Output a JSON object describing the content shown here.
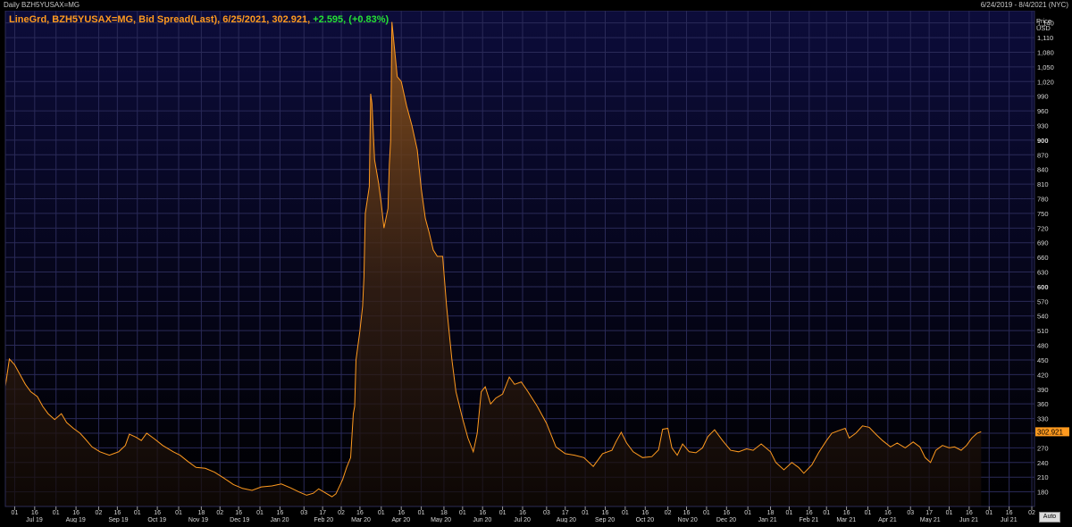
{
  "header": {
    "left_title": "Daily BZH5YUSAX=MG",
    "right_range": "6/24/2019 - 8/4/2021 (NYC)"
  },
  "legend": {
    "prefix": "LineGrd, BZH5YUSAX=MG, Bid Spread(Last), 6/25/2021, 302.921, ",
    "change": "+2.595, (+0.83%)"
  },
  "y_axis": {
    "title_line1": "Price",
    "title_line2": "USD",
    "ticks": [
      1140,
      1110,
      1080,
      1050,
      1020,
      990,
      960,
      930,
      900,
      870,
      840,
      810,
      780,
      750,
      720,
      690,
      660,
      630,
      600,
      570,
      540,
      510,
      480,
      450,
      420,
      390,
      360,
      330,
      300,
      270,
      240,
      210,
      180
    ],
    "bold_ticks": [
      900,
      600,
      300
    ],
    "last_value_label": "302.921"
  },
  "auto_button": "Auto",
  "colors": {
    "line": "#ff9a1f",
    "bg_top": "#0c0c3a",
    "bg_bottom": "#000000",
    "positive": "#25e035"
  },
  "chart_data": {
    "type": "area",
    "ylim": [
      150,
      1165
    ],
    "x_range": [
      "2019-06-24",
      "2021-08-04"
    ],
    "x_ticks": [
      {
        "label": "01",
        "date": "2019-07-01",
        "month": "Jul 19"
      },
      {
        "label": "16",
        "date": "2019-07-16"
      },
      {
        "label": "01",
        "date": "2019-08-01",
        "month": "Aug 19"
      },
      {
        "label": "16",
        "date": "2019-08-16"
      },
      {
        "label": "02",
        "date": "2019-09-02",
        "month": "Sep 19"
      },
      {
        "label": "16",
        "date": "2019-09-16"
      },
      {
        "label": "01",
        "date": "2019-10-01",
        "month": "Oct 19"
      },
      {
        "label": "16",
        "date": "2019-10-16"
      },
      {
        "label": "01",
        "date": "2019-11-01",
        "month": "Nov 19"
      },
      {
        "label": "18",
        "date": "2019-11-18"
      },
      {
        "label": "02",
        "date": "2019-12-02",
        "month": "Dec 19"
      },
      {
        "label": "16",
        "date": "2019-12-16"
      },
      {
        "label": "01",
        "date": "2020-01-01",
        "month": "Jan 20"
      },
      {
        "label": "16",
        "date": "2020-01-16"
      },
      {
        "label": "03",
        "date": "2020-02-03",
        "month": "Feb 20"
      },
      {
        "label": "17",
        "date": "2020-02-17"
      },
      {
        "label": "02",
        "date": "2020-03-02",
        "month": "Mar 20"
      },
      {
        "label": "16",
        "date": "2020-03-16"
      },
      {
        "label": "01",
        "date": "2020-04-01",
        "month": "Apr 20"
      },
      {
        "label": "16",
        "date": "2020-04-16"
      },
      {
        "label": "01",
        "date": "2020-05-01",
        "month": "May 20"
      },
      {
        "label": "18",
        "date": "2020-05-18"
      },
      {
        "label": "01",
        "date": "2020-06-01",
        "month": "Jun 20"
      },
      {
        "label": "16",
        "date": "2020-06-16"
      },
      {
        "label": "01",
        "date": "2020-07-01",
        "month": "Jul 20"
      },
      {
        "label": "16",
        "date": "2020-07-16"
      },
      {
        "label": "03",
        "date": "2020-08-03",
        "month": "Aug 20"
      },
      {
        "label": "17",
        "date": "2020-08-17"
      },
      {
        "label": "01",
        "date": "2020-09-01",
        "month": "Sep 20"
      },
      {
        "label": "16",
        "date": "2020-09-16"
      },
      {
        "label": "01",
        "date": "2020-10-01",
        "month": "Oct 20"
      },
      {
        "label": "16",
        "date": "2020-10-16"
      },
      {
        "label": "02",
        "date": "2020-11-02",
        "month": "Nov 20"
      },
      {
        "label": "16",
        "date": "2020-11-16"
      },
      {
        "label": "01",
        "date": "2020-12-01",
        "month": "Dec 20"
      },
      {
        "label": "16",
        "date": "2020-12-16"
      },
      {
        "label": "01",
        "date": "2021-01-01",
        "month": "Jan 21"
      },
      {
        "label": "18",
        "date": "2021-01-18"
      },
      {
        "label": "01",
        "date": "2021-02-01",
        "month": "Feb 21"
      },
      {
        "label": "16",
        "date": "2021-02-16"
      },
      {
        "label": "01",
        "date": "2021-03-01",
        "month": "Mar 21"
      },
      {
        "label": "16",
        "date": "2021-03-16"
      },
      {
        "label": "01",
        "date": "2021-04-01",
        "month": "Apr 21"
      },
      {
        "label": "16",
        "date": "2021-04-16"
      },
      {
        "label": "03",
        "date": "2021-05-03",
        "month": "May 21"
      },
      {
        "label": "17",
        "date": "2021-05-17"
      },
      {
        "label": "01",
        "date": "2021-06-01",
        "month": "Jun 21"
      },
      {
        "label": "16",
        "date": "2021-06-16"
      },
      {
        "label": "01",
        "date": "2021-07-01",
        "month": "Jul 21"
      },
      {
        "label": "16",
        "date": "2021-07-16"
      },
      {
        "label": "02",
        "date": "2021-08-02"
      }
    ],
    "series": [
      {
        "points": [
          [
            "2019-06-24",
            396
          ],
          [
            "2019-06-27",
            452
          ],
          [
            "2019-07-01",
            440
          ],
          [
            "2019-07-05",
            420
          ],
          [
            "2019-07-09",
            400
          ],
          [
            "2019-07-13",
            385
          ],
          [
            "2019-07-18",
            375
          ],
          [
            "2019-07-22",
            355
          ],
          [
            "2019-07-26",
            340
          ],
          [
            "2019-07-31",
            328
          ],
          [
            "2019-08-05",
            340
          ],
          [
            "2019-08-09",
            322
          ],
          [
            "2019-08-14",
            310
          ],
          [
            "2019-08-19",
            300
          ],
          [
            "2019-08-23",
            288
          ],
          [
            "2019-08-28",
            272
          ],
          [
            "2019-09-03",
            262
          ],
          [
            "2019-09-10",
            255
          ],
          [
            "2019-09-17",
            262
          ],
          [
            "2019-09-22",
            275
          ],
          [
            "2019-09-25",
            298
          ],
          [
            "2019-09-30",
            292
          ],
          [
            "2019-10-04",
            285
          ],
          [
            "2019-10-08",
            300
          ],
          [
            "2019-10-14",
            288
          ],
          [
            "2019-10-20",
            275
          ],
          [
            "2019-10-28",
            262
          ],
          [
            "2019-11-02",
            255
          ],
          [
            "2019-11-08",
            242
          ],
          [
            "2019-11-14",
            230
          ],
          [
            "2019-11-21",
            228
          ],
          [
            "2019-11-28",
            220
          ],
          [
            "2019-12-05",
            208
          ],
          [
            "2019-12-12",
            195
          ],
          [
            "2019-12-19",
            187
          ],
          [
            "2019-12-26",
            183
          ],
          [
            "2020-01-02",
            190
          ],
          [
            "2020-01-10",
            192
          ],
          [
            "2020-01-17",
            196
          ],
          [
            "2020-01-24",
            188
          ],
          [
            "2020-01-30",
            180
          ],
          [
            "2020-02-05",
            173
          ],
          [
            "2020-02-10",
            177
          ],
          [
            "2020-02-14",
            186
          ],
          [
            "2020-02-19",
            178
          ],
          [
            "2020-02-24",
            170
          ],
          [
            "2020-02-27",
            176
          ],
          [
            "2020-03-03",
            205
          ],
          [
            "2020-03-06",
            230
          ],
          [
            "2020-03-09",
            250
          ],
          [
            "2020-03-11",
            340
          ],
          [
            "2020-03-12",
            355
          ],
          [
            "2020-03-13",
            450
          ],
          [
            "2020-03-16",
            510
          ],
          [
            "2020-03-18",
            560
          ],
          [
            "2020-03-19",
            620
          ],
          [
            "2020-03-20",
            750
          ],
          [
            "2020-03-23",
            805
          ],
          [
            "2020-03-24",
            995
          ],
          [
            "2020-03-25",
            975
          ],
          [
            "2020-03-26",
            915
          ],
          [
            "2020-03-27",
            860
          ],
          [
            "2020-03-30",
            812
          ],
          [
            "2020-04-01",
            770
          ],
          [
            "2020-04-03",
            720
          ],
          [
            "2020-04-06",
            760
          ],
          [
            "2020-04-07",
            850
          ],
          [
            "2020-04-08",
            900
          ],
          [
            "2020-04-09",
            1142
          ],
          [
            "2020-04-13",
            1030
          ],
          [
            "2020-04-16",
            1020
          ],
          [
            "2020-04-20",
            970
          ],
          [
            "2020-04-24",
            930
          ],
          [
            "2020-04-28",
            880
          ],
          [
            "2020-05-01",
            800
          ],
          [
            "2020-05-04",
            740
          ],
          [
            "2020-05-07",
            710
          ],
          [
            "2020-05-10",
            675
          ],
          [
            "2020-05-13",
            662
          ],
          [
            "2020-05-17",
            662
          ],
          [
            "2020-05-20",
            560
          ],
          [
            "2020-05-24",
            450
          ],
          [
            "2020-05-27",
            385
          ],
          [
            "2020-06-01",
            330
          ],
          [
            "2020-06-05",
            290
          ],
          [
            "2020-06-09",
            262
          ],
          [
            "2020-06-12",
            300
          ],
          [
            "2020-06-15",
            385
          ],
          [
            "2020-06-18",
            395
          ],
          [
            "2020-06-22",
            360
          ],
          [
            "2020-06-26",
            372
          ],
          [
            "2020-07-01",
            380
          ],
          [
            "2020-07-06",
            415
          ],
          [
            "2020-07-10",
            400
          ],
          [
            "2020-07-15",
            405
          ],
          [
            "2020-07-20",
            385
          ],
          [
            "2020-07-27",
            355
          ],
          [
            "2020-08-03",
            320
          ],
          [
            "2020-08-10",
            272
          ],
          [
            "2020-08-17",
            258
          ],
          [
            "2020-08-24",
            255
          ],
          [
            "2020-08-31",
            250
          ],
          [
            "2020-09-07",
            232
          ],
          [
            "2020-09-14",
            258
          ],
          [
            "2020-09-21",
            265
          ],
          [
            "2020-09-24",
            282
          ],
          [
            "2020-09-28",
            302
          ],
          [
            "2020-10-02",
            280
          ],
          [
            "2020-10-07",
            262
          ],
          [
            "2020-10-14",
            250
          ],
          [
            "2020-10-21",
            252
          ],
          [
            "2020-10-26",
            266
          ],
          [
            "2020-10-29",
            308
          ],
          [
            "2020-11-02",
            310
          ],
          [
            "2020-11-05",
            270
          ],
          [
            "2020-11-09",
            255
          ],
          [
            "2020-11-13",
            278
          ],
          [
            "2020-11-18",
            262
          ],
          [
            "2020-11-23",
            260
          ],
          [
            "2020-11-28",
            270
          ],
          [
            "2020-12-02",
            293
          ],
          [
            "2020-12-07",
            307
          ],
          [
            "2020-12-13",
            285
          ],
          [
            "2020-12-19",
            265
          ],
          [
            "2020-12-25",
            262
          ],
          [
            "2020-12-31",
            268
          ],
          [
            "2021-01-05",
            265
          ],
          [
            "2021-01-11",
            278
          ],
          [
            "2021-01-18",
            262
          ],
          [
            "2021-01-22",
            240
          ],
          [
            "2021-01-28",
            225
          ],
          [
            "2021-02-03",
            240
          ],
          [
            "2021-02-08",
            230
          ],
          [
            "2021-02-12",
            218
          ],
          [
            "2021-02-18",
            235
          ],
          [
            "2021-02-23",
            260
          ],
          [
            "2021-03-01",
            285
          ],
          [
            "2021-03-05",
            300
          ],
          [
            "2021-03-10",
            305
          ],
          [
            "2021-03-15",
            310
          ],
          [
            "2021-03-18",
            290
          ],
          [
            "2021-03-23",
            300
          ],
          [
            "2021-03-28",
            315
          ],
          [
            "2021-04-02",
            312
          ],
          [
            "2021-04-07",
            298
          ],
          [
            "2021-04-12",
            285
          ],
          [
            "2021-04-18",
            272
          ],
          [
            "2021-04-23",
            280
          ],
          [
            "2021-04-29",
            270
          ],
          [
            "2021-05-05",
            282
          ],
          [
            "2021-05-10",
            272
          ],
          [
            "2021-05-14",
            250
          ],
          [
            "2021-05-18",
            240
          ],
          [
            "2021-05-22",
            265
          ],
          [
            "2021-05-27",
            275
          ],
          [
            "2021-06-01",
            270
          ],
          [
            "2021-06-05",
            272
          ],
          [
            "2021-06-10",
            265
          ],
          [
            "2021-06-14",
            275
          ],
          [
            "2021-06-18",
            290
          ],
          [
            "2021-06-22",
            300
          ],
          [
            "2021-06-25",
            302.921
          ]
        ]
      }
    ]
  }
}
